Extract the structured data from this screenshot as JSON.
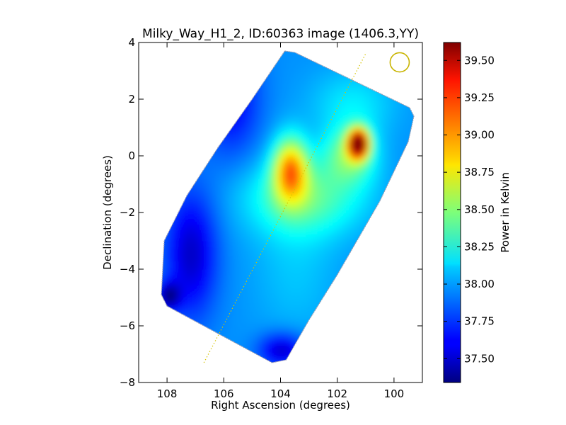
{
  "chart_data": {
    "type": "heatmap",
    "title": "Milky_Way_H1_2, ID:60363 image (1406.3,YY)",
    "xlabel": "Right Ascension (degrees)",
    "ylabel": "Declination (degrees)",
    "xlim": [
      109,
      99
    ],
    "ylim": [
      -8,
      4
    ],
    "x_ticks": [
      108,
      106,
      104,
      102,
      100
    ],
    "y_ticks": [
      4,
      2,
      0,
      -2,
      -4,
      -6,
      -8
    ],
    "colorbar": {
      "label": "Power in Kelvin",
      "range": [
        37.34,
        39.62
      ],
      "ticks": [
        "37.50",
        "37.75",
        "38.00",
        "38.25",
        "38.50",
        "38.75",
        "39.00",
        "39.25",
        "39.50"
      ],
      "colormap": "jet"
    },
    "footprint": [
      [
        103.85,
        3.7
      ],
      [
        105.0,
        2.0
      ],
      [
        106.2,
        0.3
      ],
      [
        107.3,
        -1.4
      ],
      [
        108.1,
        -3.0
      ],
      [
        108.2,
        -4.9
      ],
      [
        108.0,
        -5.3
      ],
      [
        104.3,
        -7.3
      ],
      [
        103.8,
        -7.2
      ],
      [
        103.0,
        -5.8
      ],
      [
        102.0,
        -4.2
      ],
      [
        100.5,
        -1.6
      ],
      [
        99.5,
        0.5
      ],
      [
        99.3,
        1.4
      ],
      [
        99.45,
        1.7
      ],
      [
        103.5,
        3.65
      ]
    ],
    "background_K": 37.95,
    "field_features": [
      {
        "x": 103.7,
        "y": -0.5,
        "sx": 0.6,
        "sy": 1.1,
        "amp": 0.95
      },
      {
        "x": 101.3,
        "y": 0.4,
        "sx": 0.35,
        "sy": 0.5,
        "amp": 1.7
      },
      {
        "x": 101.6,
        "y": 0.0,
        "sx": 0.9,
        "sy": 1.0,
        "amp": 0.5
      },
      {
        "x": 103.2,
        "y": -1.5,
        "sx": 2.0,
        "sy": 1.3,
        "amp": 0.45
      },
      {
        "x": 101.5,
        "y": 1.8,
        "sx": 1.5,
        "sy": 1.2,
        "amp": 0.2
      },
      {
        "x": 103.5,
        "y": -4.0,
        "sx": 1.5,
        "sy": 2.5,
        "amp": 0.12
      },
      {
        "x": 107.2,
        "y": -3.5,
        "sx": 0.9,
        "sy": 2.2,
        "amp": -0.45
      },
      {
        "x": 108.0,
        "y": -5.0,
        "sx": 0.4,
        "sy": 0.5,
        "amp": -0.5
      },
      {
        "x": 105.8,
        "y": 2.0,
        "sx": 1.0,
        "sy": 2.0,
        "amp": -0.35
      },
      {
        "x": 104.0,
        "y": -6.9,
        "sx": 0.8,
        "sy": 0.6,
        "amp": -0.45
      }
    ],
    "scan_line": [
      [
        106.7,
        -7.3
      ],
      [
        101.0,
        3.6
      ]
    ],
    "beam_marker": {
      "x": 99.8,
      "y": 3.3,
      "radius_deg": 0.45
    },
    "grid": false
  }
}
